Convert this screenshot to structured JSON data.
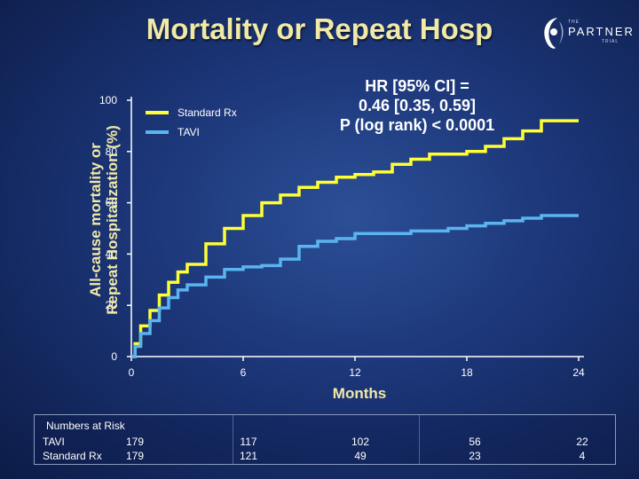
{
  "title": "Mortality or Repeat Hosp",
  "logo": {
    "small_top": "THE",
    "name": "PARTNER",
    "small_bottom": "TRIAL"
  },
  "annotation": [
    "HR [95% CI] =",
    "0.46 [0.35, 0.59]",
    "P (log rank) < 0.0001"
  ],
  "chart_data": {
    "type": "line",
    "xlabel": "Months",
    "ylabel_lines": [
      "All-cause mortality or",
      "Repeat Hospitalization (%)"
    ],
    "xlim": [
      0,
      24
    ],
    "ylim": [
      0,
      100
    ],
    "x_ticks": [
      "0",
      "6",
      "12",
      "18",
      "24"
    ],
    "y_ticks": [
      "0",
      "20",
      "40",
      "60",
      "80",
      "100"
    ],
    "legend_position": "top-left",
    "series": [
      {
        "name": "Standard Rx",
        "color": "#ffff33",
        "points": [
          [
            0,
            0
          ],
          [
            0.2,
            5
          ],
          [
            0.5,
            12
          ],
          [
            1,
            18
          ],
          [
            1.5,
            24
          ],
          [
            2,
            29
          ],
          [
            2.5,
            33
          ],
          [
            3,
            36
          ],
          [
            4,
            44
          ],
          [
            5,
            50
          ],
          [
            6,
            55
          ],
          [
            7,
            60
          ],
          [
            8,
            63
          ],
          [
            9,
            66
          ],
          [
            10,
            68
          ],
          [
            11,
            70
          ],
          [
            12,
            71
          ],
          [
            13,
            72
          ],
          [
            14,
            75
          ],
          [
            15,
            77
          ],
          [
            16,
            79
          ],
          [
            17,
            79
          ],
          [
            18,
            80
          ],
          [
            19,
            82
          ],
          [
            20,
            85
          ],
          [
            21,
            88
          ],
          [
            22,
            92
          ],
          [
            23,
            92
          ],
          [
            24,
            92
          ]
        ]
      },
      {
        "name": "TAVI",
        "color": "#5ab4f0",
        "points": [
          [
            0,
            0
          ],
          [
            0.2,
            4
          ],
          [
            0.5,
            9
          ],
          [
            1,
            14
          ],
          [
            1.5,
            19
          ],
          [
            2,
            23
          ],
          [
            2.5,
            26
          ],
          [
            3,
            28
          ],
          [
            4,
            31
          ],
          [
            5,
            34
          ],
          [
            6,
            35
          ],
          [
            7,
            35.5
          ],
          [
            8,
            38
          ],
          [
            9,
            43
          ],
          [
            10,
            45
          ],
          [
            11,
            46
          ],
          [
            12,
            48
          ],
          [
            13,
            48
          ],
          [
            14,
            48
          ],
          [
            15,
            49
          ],
          [
            16,
            49
          ],
          [
            17,
            50
          ],
          [
            18,
            51
          ],
          [
            19,
            52
          ],
          [
            20,
            53
          ],
          [
            21,
            54
          ],
          [
            22,
            55
          ],
          [
            23,
            55
          ],
          [
            24,
            55
          ]
        ]
      }
    ]
  },
  "risk_table": {
    "title": "Numbers at Risk",
    "rows": [
      {
        "label": "TAVI",
        "values": [
          "179",
          "117",
          "102",
          "56",
          "22"
        ]
      },
      {
        "label": "Standard Rx",
        "values": [
          "179",
          "121",
          "49",
          "23",
          "4"
        ]
      }
    ]
  }
}
